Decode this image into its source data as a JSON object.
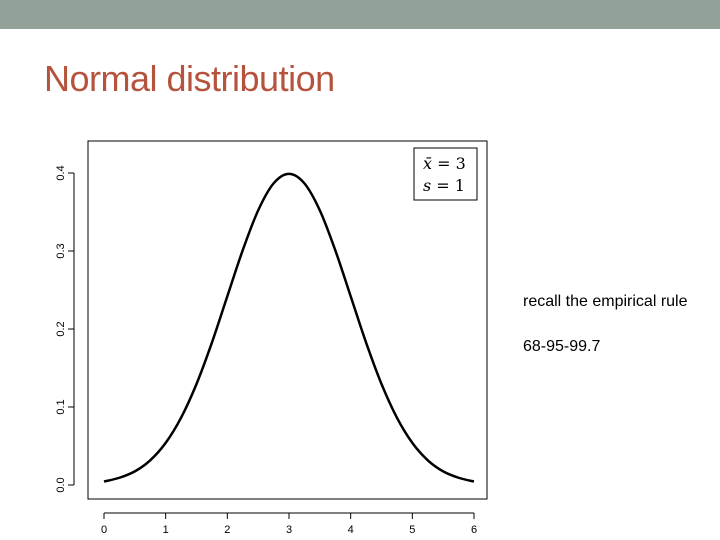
{
  "slide": {
    "title": "Normal distribution",
    "colors": {
      "header_bar": "#93a299",
      "title": "#b5533c"
    }
  },
  "notes": [
    "recall the empirical rule",
    "68-95-99.7"
  ],
  "chart_data": {
    "type": "line",
    "title": "",
    "xlabel": "",
    "ylabel": "",
    "xlim": [
      0,
      6
    ],
    "ylim": [
      0,
      0.4
    ],
    "x_ticks": [
      "0",
      "1",
      "2",
      "3",
      "4",
      "5",
      "6"
    ],
    "y_ticks": [
      "0.0",
      "0.1",
      "0.2",
      "0.3",
      "0.4"
    ],
    "legend": {
      "placement": "top-right",
      "lines": [
        {
          "lhs": "x̄",
          "eq": " = ",
          "rhs": "3"
        },
        {
          "lhs": "s",
          "eq": " = ",
          "rhs": "1"
        }
      ]
    },
    "grid": false,
    "series": [
      {
        "x": [
          0,
          0.25,
          0.5,
          0.75,
          1,
          1.25,
          1.5,
          1.75,
          2,
          2.25,
          2.5,
          2.75,
          3,
          3.25,
          3.5,
          3.75,
          4,
          4.25,
          4.5,
          4.75,
          5,
          5.25,
          5.5,
          5.75,
          6
        ],
        "values": [
          0.0044,
          0.0093,
          0.0175,
          0.0317,
          0.054,
          0.0863,
          0.1295,
          0.1826,
          0.242,
          0.3011,
          0.3521,
          0.3867,
          0.3989,
          0.3867,
          0.3521,
          0.3011,
          0.242,
          0.1826,
          0.1295,
          0.0863,
          0.054,
          0.0317,
          0.0175,
          0.0093,
          0.0044
        ],
        "color": "#000000"
      }
    ]
  }
}
